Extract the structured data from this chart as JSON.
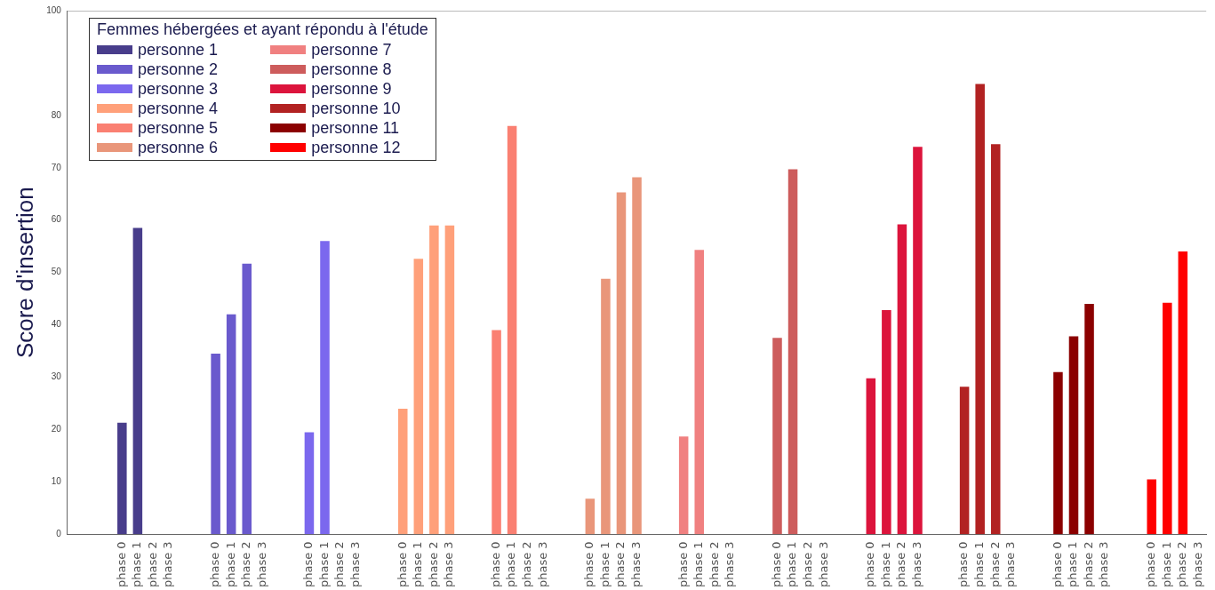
{
  "chart_data": {
    "type": "bar",
    "ylabel": "Score d'insertion",
    "legend_title": "Femmes hébergées et ayant répondu à l'étude",
    "legend": "top left",
    "grid": false,
    "categories": [
      null,
      null,
      null,
      "phase 0",
      "phase 1",
      "phase 2",
      "phase 3",
      null,
      null,
      "phase 0",
      "phase 1",
      "phase 2",
      "phase 3",
      null,
      null,
      "phase 0",
      "phase 1",
      "phase 2",
      "phase 3",
      null,
      null,
      "phase 0",
      "phase 1",
      "phase 2",
      "phase 3",
      null,
      null,
      "phase 0",
      "phase 1",
      "phase 2",
      "phase 3",
      null,
      null,
      "phase 0",
      "phase 1",
      "phase 2",
      "phase 3",
      null,
      null,
      "phase 0",
      "phase 1",
      "phase 2",
      "phase 3",
      null,
      null,
      "phase 0",
      "phase 1",
      "phase 2",
      "phase 3",
      null,
      null,
      "phase 0",
      "phase 1",
      "phase 2",
      "phase 3",
      null,
      null,
      "phase 0",
      "phase 1",
      "phase 2",
      "phase 3",
      null,
      null,
      "phase 0",
      "phase 1",
      "phase 2",
      "phase 3",
      null,
      null,
      "phase 0",
      "phase 1",
      "phase 2",
      "phase 3"
    ],
    "ylim": [
      0,
      100
    ],
    "yticks": [
      0,
      10,
      20,
      30,
      40,
      50,
      60,
      70,
      80,
      100
    ],
    "series": [
      {
        "name": "personne 1",
        "color": "#483d8b",
        "values": [
          null,
          null,
          null,
          21.3,
          58.5,
          null,
          null,
          null,
          null,
          null,
          null,
          null,
          null,
          null,
          null,
          null,
          null,
          null,
          null,
          null,
          null,
          null,
          null,
          null,
          null,
          null,
          null,
          null,
          null,
          null,
          null,
          null,
          null,
          null,
          null,
          null,
          null,
          null,
          null,
          null,
          null,
          null,
          null,
          null,
          null,
          null,
          null,
          null,
          null,
          null,
          null,
          null,
          null,
          null,
          null,
          null,
          null,
          null,
          null,
          null,
          null,
          null,
          null,
          null,
          null,
          null,
          null,
          null,
          null,
          null,
          null,
          null,
          null
        ]
      },
      {
        "name": "personne 2",
        "color": "#6a5acd",
        "values": [
          null,
          null,
          null,
          null,
          null,
          null,
          null,
          null,
          null,
          34.5,
          42,
          51.7,
          null,
          null,
          null,
          null,
          null,
          null,
          null,
          null,
          null,
          null,
          null,
          null,
          null,
          null,
          null,
          null,
          null,
          null,
          null,
          null,
          null,
          null,
          null,
          null,
          null,
          null,
          null,
          null,
          null,
          null,
          null,
          null,
          null,
          null,
          null,
          null,
          null,
          null,
          null,
          null,
          null,
          null,
          null,
          null,
          null,
          null,
          null,
          null,
          null,
          null,
          null,
          null,
          null,
          null,
          null,
          null,
          null,
          null,
          null,
          null,
          null
        ]
      },
      {
        "name": "personne 3",
        "color": "#7b68ee",
        "values": [
          null,
          null,
          null,
          null,
          null,
          null,
          null,
          null,
          null,
          null,
          null,
          null,
          null,
          null,
          null,
          19.5,
          56,
          null,
          null,
          null,
          null,
          null,
          null,
          null,
          null,
          null,
          null,
          null,
          null,
          null,
          null,
          null,
          null,
          null,
          null,
          null,
          null,
          null,
          null,
          null,
          null,
          null,
          null,
          null,
          null,
          null,
          null,
          null,
          null,
          null,
          null,
          null,
          null,
          null,
          null,
          null,
          null,
          null,
          null,
          null,
          null,
          null,
          null,
          null,
          null,
          null,
          null,
          null,
          null,
          null,
          null,
          null,
          null
        ]
      },
      {
        "name": "personne 4",
        "color": "#ffa07a",
        "values": [
          null,
          null,
          null,
          null,
          null,
          null,
          null,
          null,
          null,
          null,
          null,
          null,
          null,
          null,
          null,
          null,
          null,
          null,
          null,
          null,
          null,
          24,
          52.6,
          59,
          59,
          null,
          null,
          null,
          null,
          null,
          null,
          null,
          null,
          null,
          null,
          null,
          null,
          null,
          null,
          null,
          null,
          null,
          null,
          null,
          null,
          null,
          null,
          null,
          null,
          null,
          null,
          null,
          null,
          null,
          null,
          null,
          null,
          null,
          null,
          null,
          null,
          null,
          null,
          null,
          null,
          null,
          null,
          null,
          null,
          null,
          null,
          null,
          null
        ]
      },
      {
        "name": "personne 5",
        "color": "#fa8072",
        "values": [
          null,
          null,
          null,
          null,
          null,
          null,
          null,
          null,
          null,
          null,
          null,
          null,
          null,
          null,
          null,
          null,
          null,
          null,
          null,
          null,
          null,
          null,
          null,
          null,
          null,
          null,
          null,
          39,
          78,
          null,
          null,
          null,
          null,
          null,
          null,
          null,
          null,
          null,
          null,
          null,
          null,
          null,
          null,
          null,
          null,
          null,
          null,
          null,
          null,
          null,
          null,
          null,
          null,
          null,
          null,
          null,
          null,
          null,
          null,
          null,
          null,
          null,
          null,
          null,
          null,
          null,
          null,
          null,
          null,
          null,
          null,
          null,
          null
        ]
      },
      {
        "name": "personne 6",
        "color": "#e9967a",
        "values": [
          null,
          null,
          null,
          null,
          null,
          null,
          null,
          null,
          null,
          null,
          null,
          null,
          null,
          null,
          null,
          null,
          null,
          null,
          null,
          null,
          null,
          null,
          null,
          null,
          null,
          null,
          null,
          null,
          null,
          null,
          null,
          null,
          null,
          6.8,
          48.8,
          65.3,
          68.2,
          null,
          null,
          null,
          null,
          null,
          null,
          null,
          null,
          null,
          null,
          null,
          null,
          null,
          null,
          null,
          null,
          null,
          null,
          null,
          null,
          null,
          null,
          null,
          null,
          null,
          null,
          null,
          null,
          null,
          null,
          null,
          null,
          null,
          null,
          null,
          null
        ]
      },
      {
        "name": "personne 7",
        "color": "#f08080",
        "values": [
          null,
          null,
          null,
          null,
          null,
          null,
          null,
          null,
          null,
          null,
          null,
          null,
          null,
          null,
          null,
          null,
          null,
          null,
          null,
          null,
          null,
          null,
          null,
          null,
          null,
          null,
          null,
          null,
          null,
          null,
          null,
          null,
          null,
          null,
          null,
          null,
          null,
          null,
          null,
          18.7,
          54.3,
          null,
          null,
          null,
          null,
          null,
          null,
          null,
          null,
          null,
          null,
          null,
          null,
          null,
          null,
          null,
          null,
          null,
          null,
          null,
          null,
          null,
          null,
          null,
          null,
          null,
          null,
          null,
          null,
          null,
          null,
          null,
          null
        ]
      },
      {
        "name": "personne 8",
        "color": "#cd5c5c",
        "values": [
          null,
          null,
          null,
          null,
          null,
          null,
          null,
          null,
          null,
          null,
          null,
          null,
          null,
          null,
          null,
          null,
          null,
          null,
          null,
          null,
          null,
          null,
          null,
          null,
          null,
          null,
          null,
          null,
          null,
          null,
          null,
          null,
          null,
          null,
          null,
          null,
          null,
          null,
          null,
          null,
          null,
          null,
          null,
          null,
          null,
          37.5,
          69.7,
          null,
          null,
          null,
          null,
          null,
          null,
          null,
          null,
          null,
          null,
          null,
          null,
          null,
          null,
          null,
          null,
          null,
          null,
          null,
          null,
          null,
          null,
          null,
          null,
          null,
          null
        ]
      },
      {
        "name": "personne 9",
        "color": "#dc143c",
        "values": [
          null,
          null,
          null,
          null,
          null,
          null,
          null,
          null,
          null,
          null,
          null,
          null,
          null,
          null,
          null,
          null,
          null,
          null,
          null,
          null,
          null,
          null,
          null,
          null,
          null,
          null,
          null,
          null,
          null,
          null,
          null,
          null,
          null,
          null,
          null,
          null,
          null,
          null,
          null,
          null,
          null,
          null,
          null,
          null,
          null,
          null,
          null,
          null,
          null,
          null,
          null,
          29.8,
          42.8,
          59.2,
          74,
          null,
          null,
          null,
          null,
          null,
          null,
          null,
          null,
          null,
          null,
          null,
          null,
          null,
          null,
          null,
          null,
          null,
          null
        ]
      },
      {
        "name": "personne 10",
        "color": "#b22222",
        "values": [
          null,
          null,
          null,
          null,
          null,
          null,
          null,
          null,
          null,
          null,
          null,
          null,
          null,
          null,
          null,
          null,
          null,
          null,
          null,
          null,
          null,
          null,
          null,
          null,
          null,
          null,
          null,
          null,
          null,
          null,
          null,
          null,
          null,
          null,
          null,
          null,
          null,
          null,
          null,
          null,
          null,
          null,
          null,
          null,
          null,
          null,
          null,
          null,
          null,
          null,
          null,
          null,
          null,
          null,
          null,
          null,
          null,
          28.2,
          86,
          74.5,
          null,
          null,
          null,
          null,
          null,
          null,
          null,
          null,
          null,
          null,
          null,
          null,
          null
        ]
      },
      {
        "name": "personne 11",
        "color": "#8b0000",
        "values": [
          null,
          null,
          null,
          null,
          null,
          null,
          null,
          null,
          null,
          null,
          null,
          null,
          null,
          null,
          null,
          null,
          null,
          null,
          null,
          null,
          null,
          null,
          null,
          null,
          null,
          null,
          null,
          null,
          null,
          null,
          null,
          null,
          null,
          null,
          null,
          null,
          null,
          null,
          null,
          null,
          null,
          null,
          null,
          null,
          null,
          null,
          null,
          null,
          null,
          null,
          null,
          null,
          null,
          null,
          null,
          null,
          null,
          null,
          null,
          null,
          null,
          null,
          null,
          31,
          37.8,
          44,
          null,
          null,
          null,
          null,
          null,
          null,
          null
        ]
      },
      {
        "name": "personne 12",
        "color": "#ff0000",
        "values": [
          null,
          null,
          null,
          null,
          null,
          null,
          null,
          null,
          null,
          null,
          null,
          null,
          null,
          null,
          null,
          null,
          null,
          null,
          null,
          null,
          null,
          null,
          null,
          null,
          null,
          null,
          null,
          null,
          null,
          null,
          null,
          null,
          null,
          null,
          null,
          null,
          null,
          null,
          null,
          null,
          null,
          null,
          null,
          null,
          null,
          null,
          null,
          null,
          null,
          null,
          null,
          null,
          null,
          null,
          null,
          null,
          null,
          null,
          null,
          null,
          null,
          null,
          null,
          null,
          null,
          null,
          null,
          null,
          null,
          10.5,
          44.2,
          54,
          null
        ]
      }
    ]
  }
}
